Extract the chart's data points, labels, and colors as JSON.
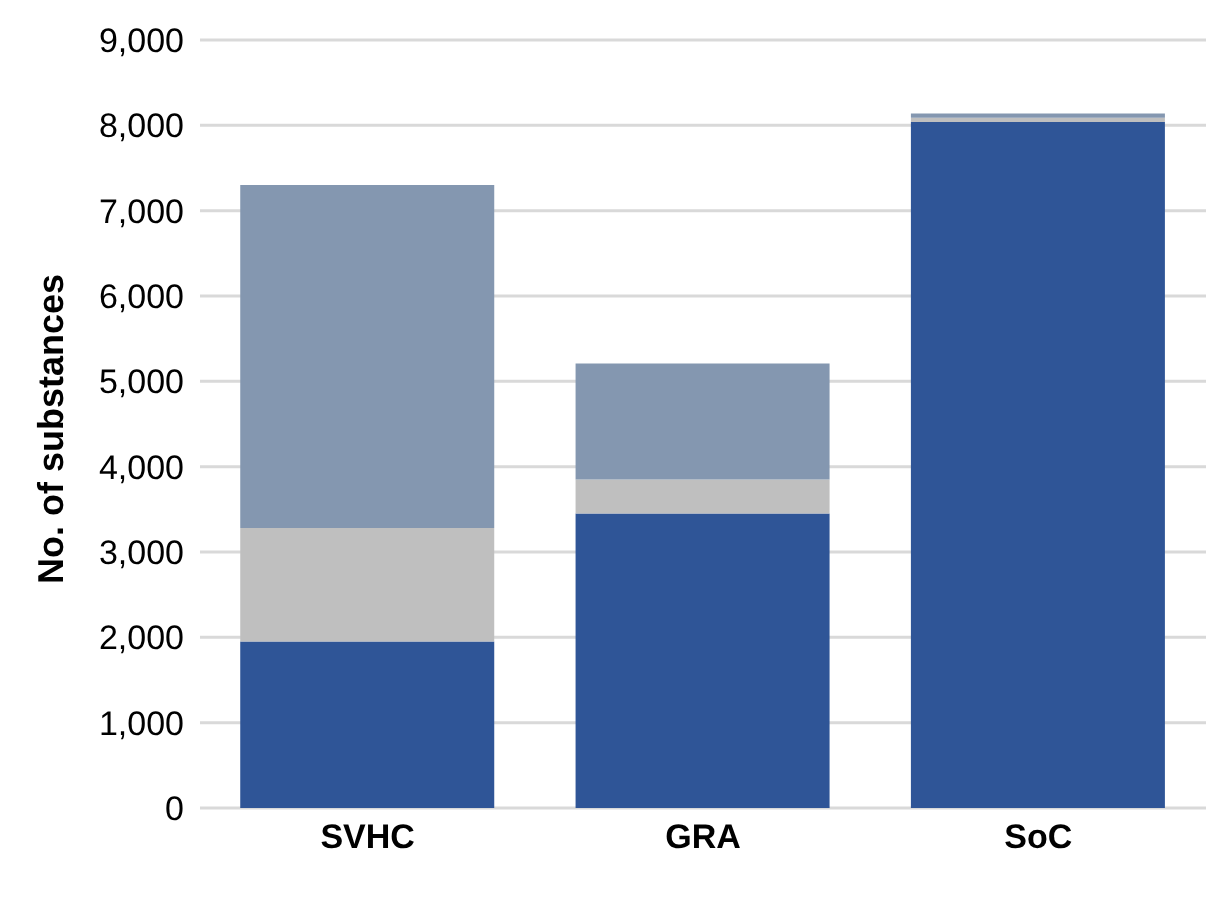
{
  "chart_data": {
    "type": "bar",
    "stacked": true,
    "ylabel": "No. of substances",
    "categories": [
      "SVHC",
      "GRA",
      "SoC"
    ],
    "series": [
      {
        "color": "#2f5597",
        "values": [
          1950,
          3450,
          8040
        ]
      },
      {
        "color": "#bfbfbf",
        "values": [
          1330,
          400,
          50
        ]
      },
      {
        "color": "#8497b0",
        "values": [
          4020,
          1360,
          50
        ]
      }
    ],
    "ylim": [
      0,
      9000
    ],
    "yticks": [
      {
        "value": 0,
        "label": "0"
      },
      {
        "value": 1000,
        "label": "1,000"
      },
      {
        "value": 2000,
        "label": "2,000"
      },
      {
        "value": 3000,
        "label": "3,000"
      },
      {
        "value": 4000,
        "label": "4,000"
      },
      {
        "value": 5000,
        "label": "5,000"
      },
      {
        "value": 6000,
        "label": "6,000"
      },
      {
        "value": 7000,
        "label": "7,000"
      },
      {
        "value": 8000,
        "label": "8,000"
      },
      {
        "value": 9000,
        "label": "9,000"
      }
    ],
    "grid": "y"
  }
}
